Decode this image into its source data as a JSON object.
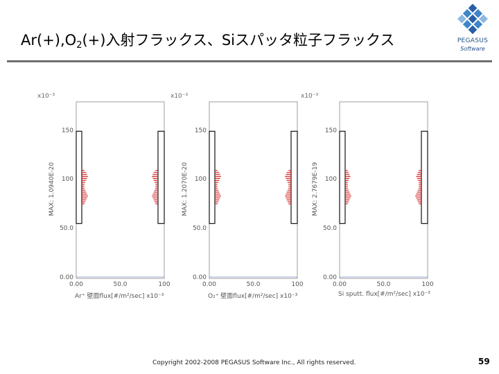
{
  "slide": {
    "title_parts": [
      "Ar(+),O",
      "2",
      "(+)入射フラックス、Siスパッタ粒子フラックス"
    ],
    "footer": "Copyright 2002-2008 PEGASUS Software Inc., All rights reserved.",
    "page_number": "59",
    "logo": {
      "name": "PEGASUS",
      "sub": "Software",
      "colors": [
        "#2a5fa8",
        "#3d86c9",
        "#8fb8e0"
      ]
    }
  },
  "chart_data": [
    {
      "type": "bar",
      "multiplier": "x10⁻³",
      "ylabel": "MAX: 1.0940E-20",
      "xlabel": "Ar⁺ 壁面flux[#/m²/sec] x10⁻³",
      "xticks": [
        "0.00",
        "50.0",
        "100"
      ],
      "yticks": [
        "0.00",
        "50.0",
        "100",
        "150"
      ],
      "xlim": [
        0,
        100
      ],
      "ylim": [
        0,
        180
      ],
      "color": "#d22020",
      "bars": [
        {
          "y": 110,
          "v": 3
        },
        {
          "y": 108,
          "v": 5
        },
        {
          "y": 106,
          "v": 6
        },
        {
          "y": 104,
          "v": 7
        },
        {
          "y": 102,
          "v": 6
        },
        {
          "y": 100,
          "v": 5
        },
        {
          "y": 98,
          "v": 4
        },
        {
          "y": 96,
          "v": 3
        },
        {
          "y": 94,
          "v": 3
        },
        {
          "y": 92,
          "v": 3
        },
        {
          "y": 90,
          "v": 4
        },
        {
          "y": 88,
          "v": 5
        },
        {
          "y": 86,
          "v": 6
        },
        {
          "y": 84,
          "v": 7
        },
        {
          "y": 82,
          "v": 6
        },
        {
          "y": 80,
          "v": 5
        },
        {
          "y": 78,
          "v": 4
        },
        {
          "y": 76,
          "v": 3
        }
      ]
    },
    {
      "type": "bar",
      "multiplier": "x10⁻³",
      "ylabel": "MAX: 1.2070E-20",
      "xlabel": "O₂⁺ 壁面flux[#/m²/sec] x10⁻³",
      "xticks": [
        "0.00",
        "50.0",
        "100"
      ],
      "yticks": [
        "0.00",
        "50.0",
        "100",
        "150"
      ],
      "xlim": [
        0,
        100
      ],
      "ylim": [
        0,
        180
      ],
      "color": "#d22020",
      "bars": [
        {
          "y": 110,
          "v": 3
        },
        {
          "y": 108,
          "v": 5
        },
        {
          "y": 106,
          "v": 6
        },
        {
          "y": 104,
          "v": 7
        },
        {
          "y": 102,
          "v": 6
        },
        {
          "y": 100,
          "v": 5
        },
        {
          "y": 98,
          "v": 4
        },
        {
          "y": 96,
          "v": 3
        },
        {
          "y": 94,
          "v": 3
        },
        {
          "y": 92,
          "v": 3
        },
        {
          "y": 90,
          "v": 4
        },
        {
          "y": 88,
          "v": 5
        },
        {
          "y": 86,
          "v": 6
        },
        {
          "y": 84,
          "v": 7
        },
        {
          "y": 82,
          "v": 6
        },
        {
          "y": 80,
          "v": 5
        },
        {
          "y": 78,
          "v": 4
        },
        {
          "y": 76,
          "v": 3
        }
      ]
    },
    {
      "type": "bar",
      "multiplier": "x10⁻³",
      "ylabel": "MAX: 2.7679E-19",
      "xlabel": "Si sputt. flux[#/m²/sec] x10⁻³",
      "xticks": [
        "0.00",
        "50.0",
        "100"
      ],
      "yticks": [
        "0.00",
        "50.0",
        "100",
        "150"
      ],
      "xlim": [
        0,
        100
      ],
      "ylim": [
        0,
        180
      ],
      "color": "#d22020",
      "bars": [
        {
          "y": 110,
          "v": 3
        },
        {
          "y": 108,
          "v": 4
        },
        {
          "y": 106,
          "v": 5
        },
        {
          "y": 104,
          "v": 6
        },
        {
          "y": 102,
          "v": 5
        },
        {
          "y": 100,
          "v": 4
        },
        {
          "y": 98,
          "v": 3
        },
        {
          "y": 96,
          "v": 3
        },
        {
          "y": 94,
          "v": 3
        },
        {
          "y": 92,
          "v": 3
        },
        {
          "y": 90,
          "v": 4
        },
        {
          "y": 88,
          "v": 5
        },
        {
          "y": 86,
          "v": 6
        },
        {
          "y": 84,
          "v": 7
        },
        {
          "y": 82,
          "v": 6
        },
        {
          "y": 80,
          "v": 5
        },
        {
          "y": 78,
          "v": 4
        },
        {
          "y": 76,
          "v": 3
        }
      ]
    }
  ]
}
